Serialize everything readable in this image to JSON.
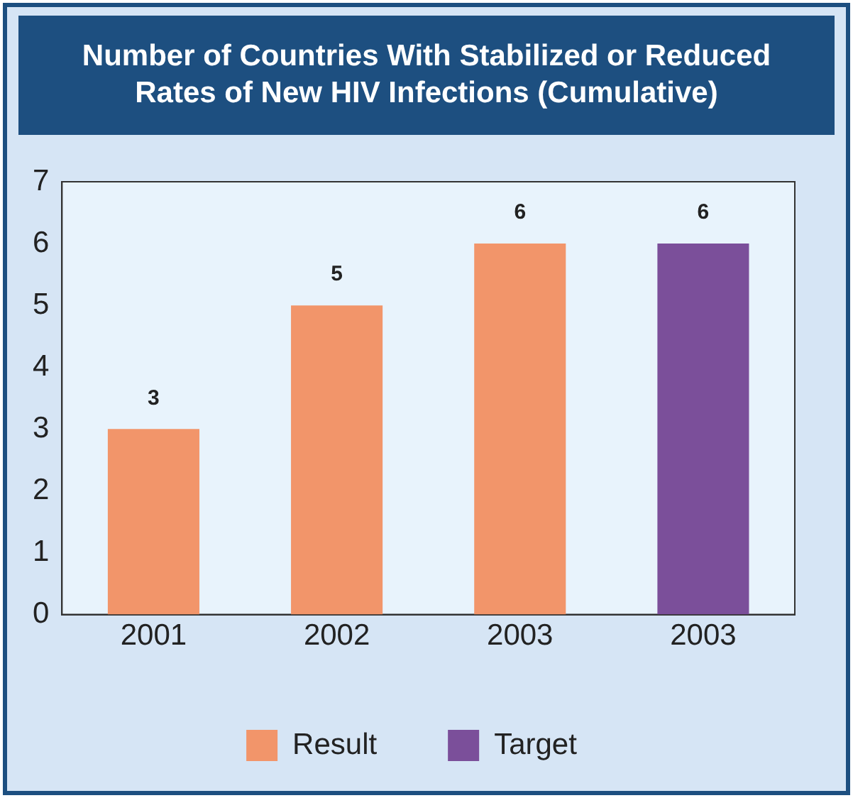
{
  "chart_data": {
    "type": "bar",
    "title": "Number of Countries With Stabilized or Reduced Rates of New HIV Infections (Cumulative)",
    "categories": [
      "2001",
      "2002",
      "2003",
      "2003"
    ],
    "series": [
      {
        "name": "Result",
        "color": "#f2956a",
        "values": [
          3,
          5,
          6,
          null
        ]
      },
      {
        "name": "Target",
        "color": "#7b4f9a",
        "values": [
          null,
          null,
          null,
          6
        ]
      }
    ],
    "ylim": [
      0,
      7
    ],
    "yticks": [
      0,
      1,
      2,
      3,
      4,
      5,
      6,
      7
    ],
    "grid": false,
    "legend": "bottom",
    "data_labels": true
  }
}
